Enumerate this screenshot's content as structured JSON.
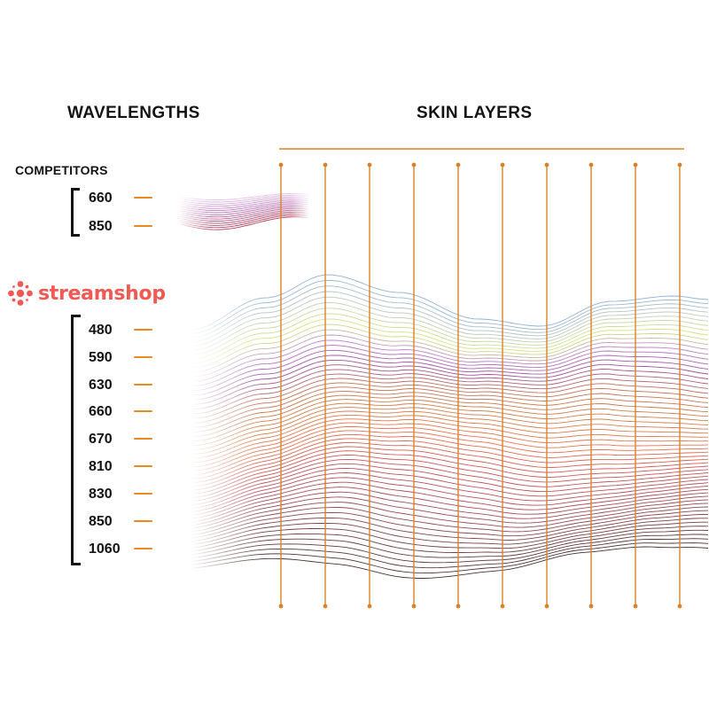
{
  "titles": {
    "wavelengths": "WAVELENGTHS",
    "skin_layers": "SKIN LAYERS"
  },
  "competitors": {
    "label": "COMPETITORS",
    "wavelengths": [
      "660",
      "850"
    ]
  },
  "brand": {
    "name": "streamshop",
    "color": "#ef5a55",
    "logo_icon": "dot-cluster-logo"
  },
  "streamshop_wavelengths": [
    "480",
    "590",
    "630",
    "660",
    "670",
    "810",
    "830",
    "850",
    "1060"
  ],
  "colors": {
    "accent": "#e88a1e",
    "text": "#141414"
  }
}
